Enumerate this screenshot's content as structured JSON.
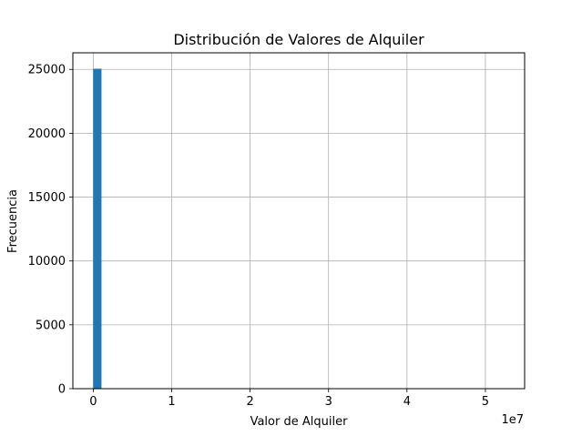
{
  "chart_data": {
    "type": "bar",
    "title": "Distribución de Valores de Alquiler",
    "xlabel": "Valor de Alquiler",
    "ylabel": "Frecuencia",
    "x_offset_label": "1e7",
    "xlim": [
      -2600000,
      55000000
    ],
    "ylim": [
      0,
      26300
    ],
    "x_ticks": [
      0,
      10000000,
      20000000,
      30000000,
      40000000,
      50000000
    ],
    "x_tick_labels": [
      "0",
      "1",
      "2",
      "3",
      "4",
      "5"
    ],
    "y_ticks": [
      0,
      5000,
      10000,
      15000,
      20000,
      25000
    ],
    "y_tick_labels": [
      "0",
      "5000",
      "10000",
      "15000",
      "20000",
      "25000"
    ],
    "grid": true,
    "bar_color": "#1f77b4",
    "bins": [
      {
        "x0": 0,
        "x1": 1050000,
        "count": 25050
      }
    ]
  }
}
